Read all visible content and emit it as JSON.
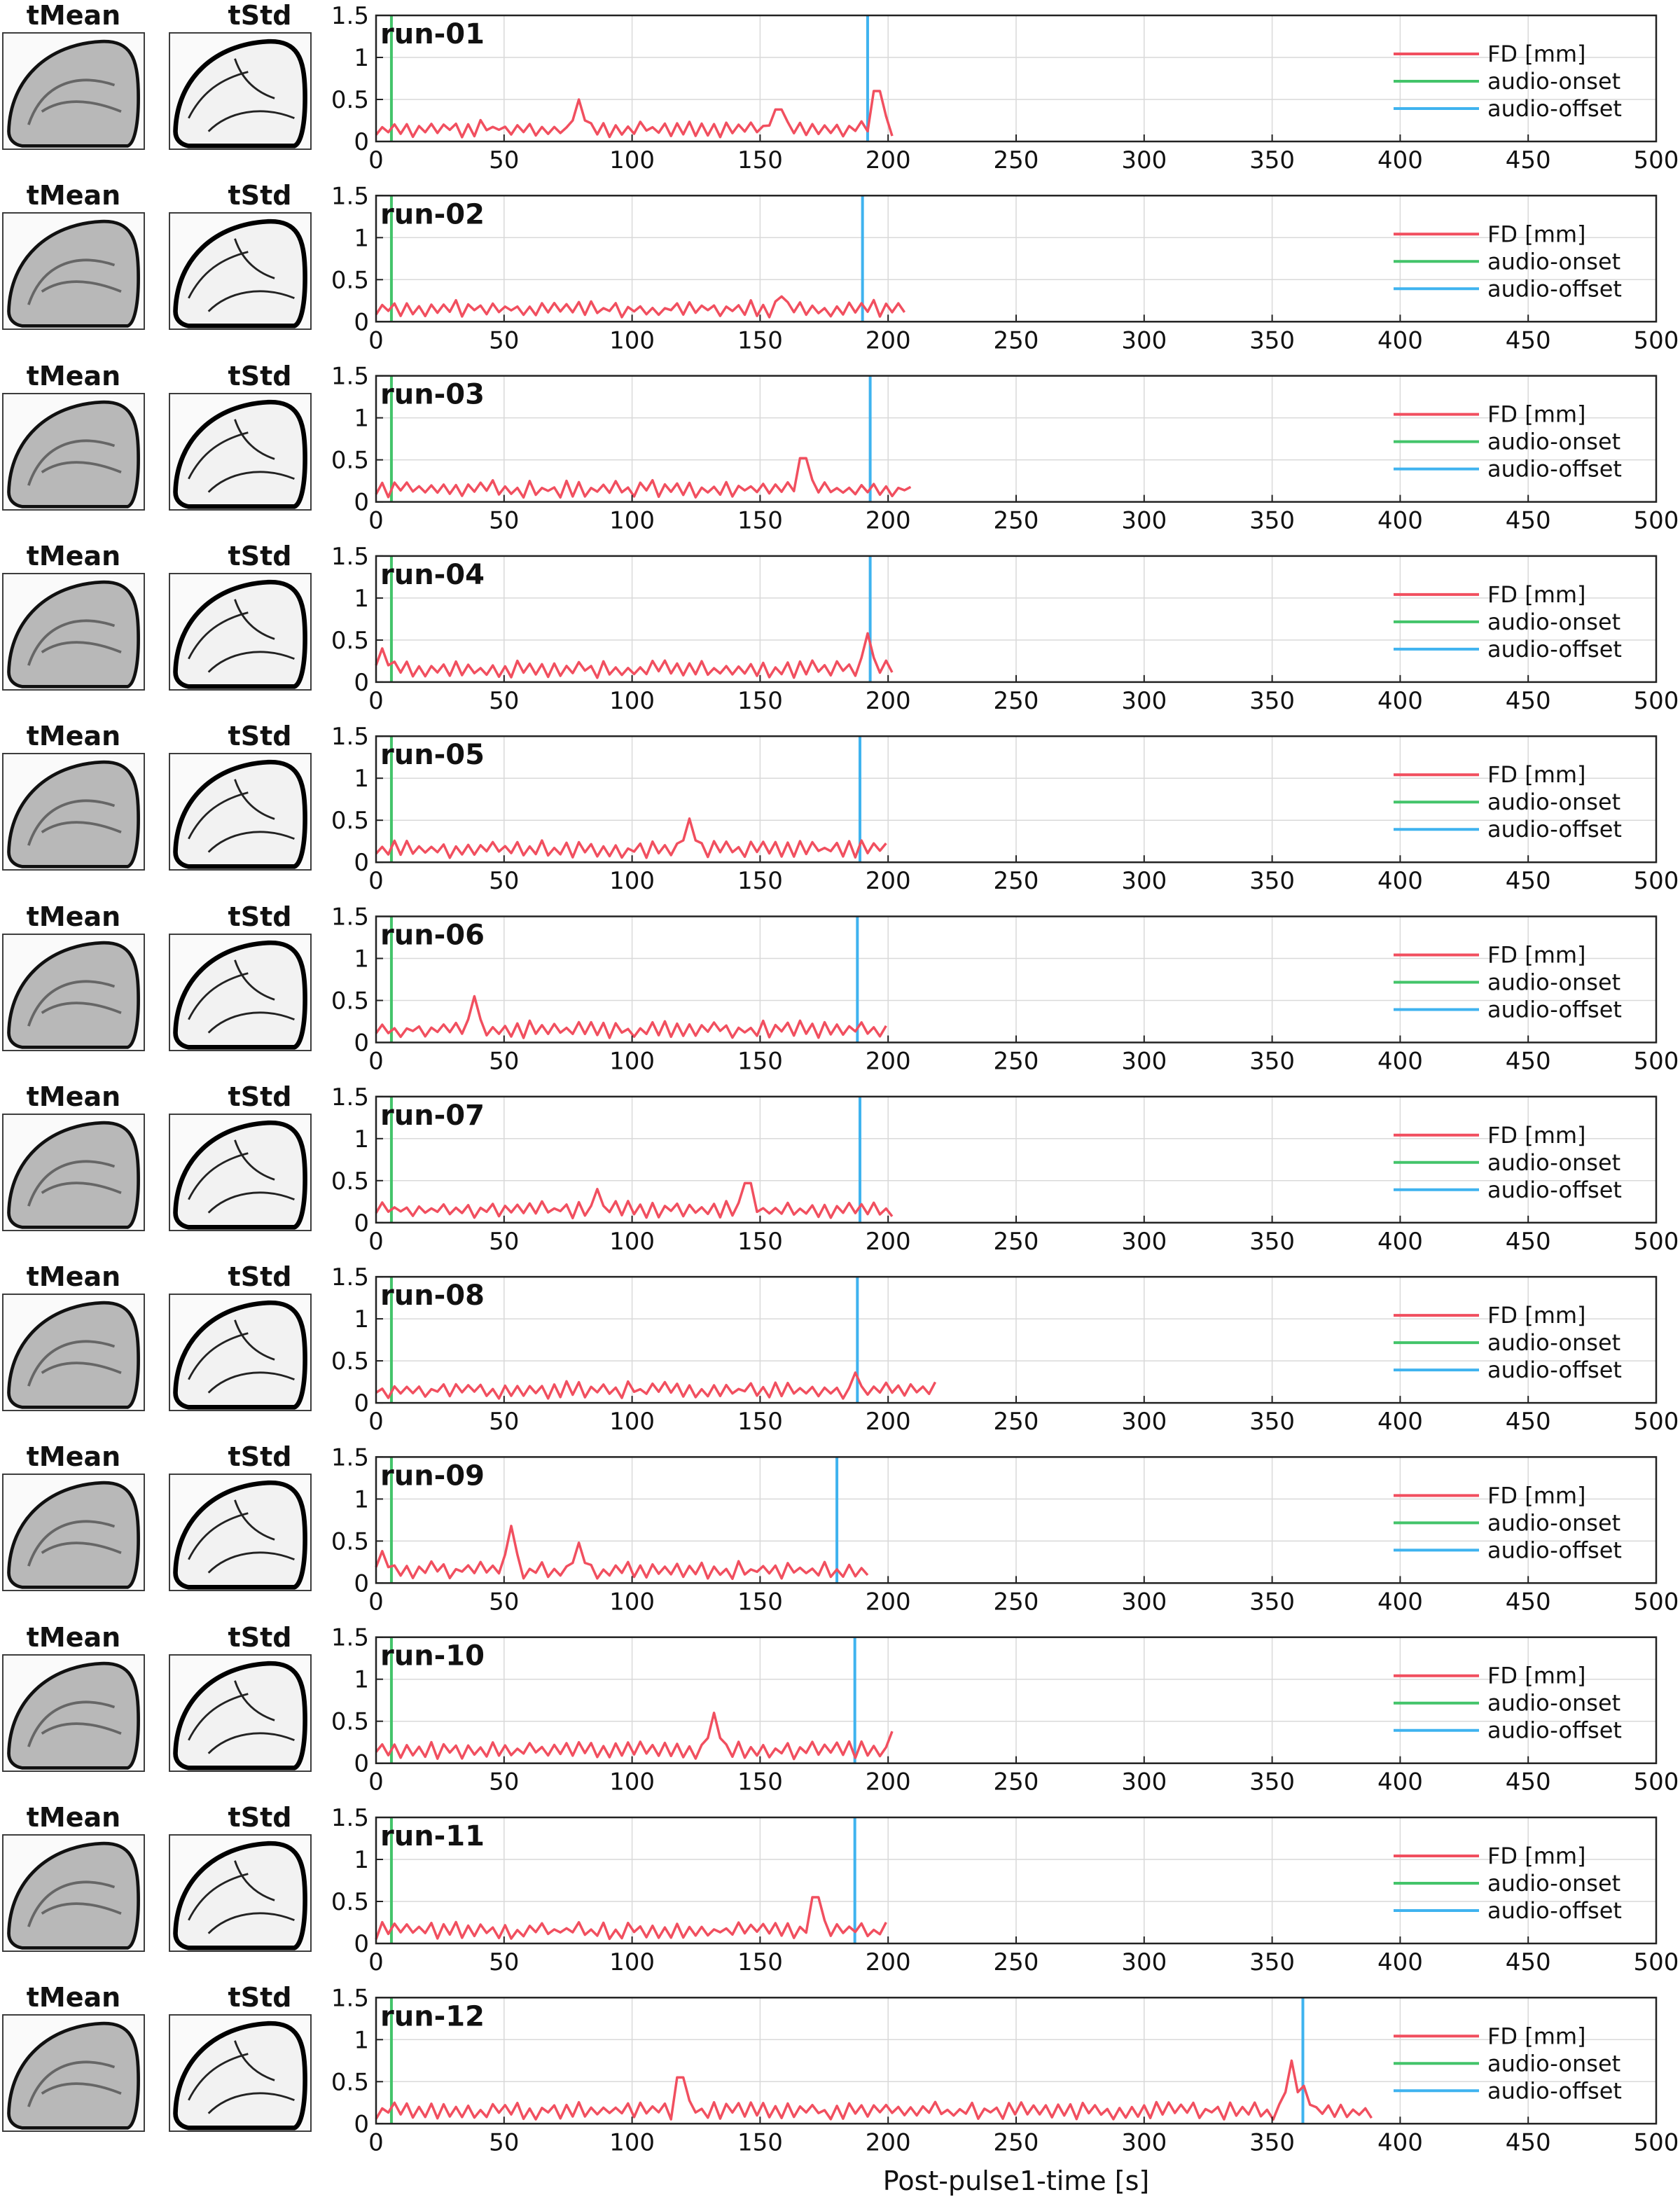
{
  "labels": {
    "mean": "tMean",
    "std": "tStd"
  },
  "colors": {
    "fd": "#f14f5f",
    "onset": "#43c46a",
    "offset": "#3fb3ef",
    "grid": "#d9d9d9",
    "axis": "#222222"
  },
  "chart_data": {
    "type": "line",
    "xlabel": "Post-pulse1-time [s]",
    "xlim": [
      0,
      500
    ],
    "ylim": [
      0,
      1.5
    ],
    "xticks": [
      0,
      50,
      100,
      150,
      200,
      250,
      300,
      350,
      400,
      450,
      500
    ],
    "yticks": [
      0,
      0.5,
      1,
      1.5
    ],
    "xtick_labels": [
      "0",
      "50",
      "100",
      "150",
      "200",
      "250",
      "300",
      "350",
      "400",
      "450",
      "500"
    ],
    "ytick_labels": [
      "0",
      "0.5",
      "1",
      "1.5"
    ],
    "legend": [
      "FD [mm]",
      "audio-onset",
      "audio-offset"
    ],
    "legend_placement": "top-right",
    "grid": true,
    "runs": [
      {
        "title": "run-01",
        "onset": 6,
        "offset": 192,
        "end": 204,
        "peaks": [
          [
            80,
            0.5
          ],
          [
            157,
            0.38
          ],
          [
            196,
            0.6
          ]
        ]
      },
      {
        "title": "run-02",
        "onset": 6,
        "offset": 190,
        "end": 208,
        "peaks": [
          [
            158,
            0.3
          ]
        ]
      },
      {
        "title": "run-03",
        "onset": 6,
        "offset": 193,
        "end": 210,
        "peaks": [
          [
            167,
            0.52
          ]
        ]
      },
      {
        "title": "run-04",
        "onset": 6,
        "offset": 193,
        "end": 204,
        "peaks": [
          [
            3,
            0.4
          ],
          [
            192,
            0.58
          ]
        ]
      },
      {
        "title": "run-05",
        "onset": 6,
        "offset": 189,
        "end": 200,
        "peaks": [
          [
            122,
            0.52
          ]
        ]
      },
      {
        "title": "run-06",
        "onset": 6,
        "offset": 188,
        "end": 200,
        "peaks": [
          [
            38,
            0.55
          ]
        ]
      },
      {
        "title": "run-07",
        "onset": 6,
        "offset": 189,
        "end": 202,
        "peaks": [
          [
            86,
            0.4
          ],
          [
            145,
            0.47
          ]
        ]
      },
      {
        "title": "run-08",
        "onset": 6,
        "offset": 188,
        "end": 219,
        "peaks": [
          [
            188,
            0.36
          ]
        ]
      },
      {
        "title": "run-09",
        "onset": 6,
        "offset": 180,
        "end": 193,
        "peaks": [
          [
            52,
            0.68
          ],
          [
            79,
            0.48
          ],
          [
            3,
            0.38
          ]
        ]
      },
      {
        "title": "run-10",
        "onset": 6,
        "offset": 187,
        "end": 202,
        "peaks": [
          [
            132,
            0.6
          ],
          [
            201,
            0.38
          ]
        ]
      },
      {
        "title": "run-11",
        "onset": 6,
        "offset": 187,
        "end": 201,
        "peaks": [
          [
            172,
            0.55
          ]
        ]
      },
      {
        "title": "run-12",
        "onset": 6,
        "offset": 362,
        "end": 390,
        "peaks": [
          [
            119,
            0.55
          ],
          [
            357,
            0.75
          ],
          [
            363,
            0.45
          ]
        ]
      }
    ]
  }
}
